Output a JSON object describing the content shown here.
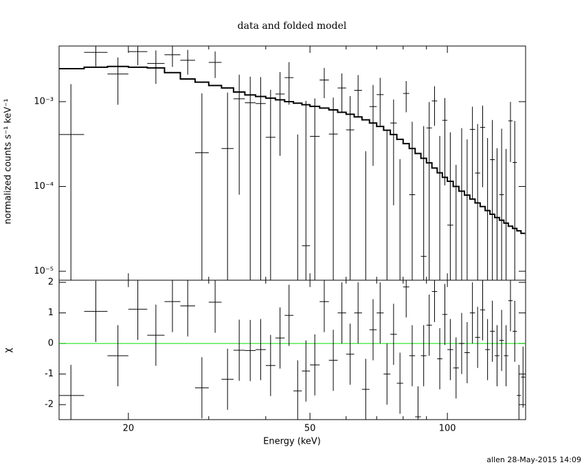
{
  "chart_data": {
    "type": "spectrum",
    "title": "data and folded model",
    "x_label": "Energy (keV)",
    "footer": "allen 28-May-2015 14:09",
    "xlog": true,
    "xlim": [
      14.1,
      148.4
    ],
    "xticks": [
      20,
      50,
      100
    ],
    "xminor": [
      30,
      40,
      60,
      70,
      80,
      90
    ],
    "bins": [
      14,
      16,
      18,
      20,
      22,
      24,
      26,
      28,
      30,
      32,
      34,
      36,
      38,
      40,
      42,
      44,
      46,
      48,
      50,
      52.5,
      55,
      57.5,
      60,
      62.5,
      65,
      67.5,
      70,
      72.5,
      75,
      77.5,
      80,
      82.5,
      85,
      87.5,
      90,
      92.5,
      95,
      97.5,
      100,
      103,
      106,
      109,
      112,
      115,
      118,
      121,
      124,
      127,
      130,
      133,
      136,
      139,
      142,
      145,
      148
    ],
    "panels": [
      {
        "type": "step",
        "y_label": "normalized counts s⁻¹ keV⁻¹",
        "ylog": true,
        "ylim": [
          7.85e-06,
          0.00453
        ],
        "yticks": [
          {
            "value": 1e-05,
            "label": "10⁻⁵"
          },
          {
            "value": 0.0001,
            "label": "10⁻⁴"
          },
          {
            "value": 0.001,
            "label": "10⁻³"
          }
        ],
        "color": "#000000",
        "model_color": "#000000",
        "values": [
          0.00041,
          0.00381,
          0.00212,
          0.00389,
          0.00282,
          0.00357,
          0.00308,
          0.00025,
          0.0029,
          0.00028,
          0.00108,
          0.00097,
          0.00095,
          0.00038,
          0.00123,
          0.00192,
          -0.00059,
          2e-05,
          0.00039,
          0.0018,
          0.000415,
          0.00145,
          0.000465,
          0.00136,
          -0.00044,
          0.000875,
          0.00121,
          -0.00024,
          0.00056,
          -0.00029,
          0.00125,
          8e-05,
          -0.000955,
          1.5e-05,
          0.00049,
          0.00102,
          -0.000105,
          0.000603,
          3.5e-05,
          -0.00022,
          8.8e-05,
          -4.1e-05,
          0.000471,
          0.000144,
          0.000498,
          -2.8e-05,
          0.000207,
          -0.000117,
          8e-05,
          -0.000123,
          0.000594,
          0.000192,
          -0.00065,
          -0.000412
        ],
        "errors": [
          0.0012,
          0.0012,
          0.0012,
          0.0012,
          0.0012,
          0.001,
          0.001,
          0.001,
          0.001,
          0.001,
          0.001,
          0.001,
          0.001,
          0.001,
          0.001,
          0.001,
          0.001,
          0.001,
          0.0007,
          0.0007,
          0.0007,
          0.0007,
          0.0007,
          0.0007,
          0.0007,
          0.0007,
          0.0007,
          0.0007,
          0.0005,
          0.0005,
          0.0005,
          0.0005,
          0.0005,
          0.0005,
          0.0005,
          0.0005,
          0.0005,
          0.0005,
          0.0004,
          0.0004,
          0.0004,
          0.0004,
          0.0004,
          0.0004,
          0.0004,
          0.0004,
          0.0004,
          0.0004,
          0.0004,
          0.0004,
          0.0004,
          0.0004,
          0.0004,
          0.0004
        ],
        "model": [
          0.00245,
          0.00255,
          0.0026,
          0.00255,
          0.0025,
          0.0022,
          0.00185,
          0.0017,
          0.00155,
          0.00145,
          0.0013,
          0.0012,
          0.00115,
          0.0011,
          0.00105,
          0.001,
          0.00096,
          0.00092,
          0.00088,
          0.00084,
          0.0008,
          0.00075,
          0.00071,
          0.00066,
          0.00061,
          0.00056,
          0.00051,
          0.00046,
          0.00041,
          0.00036,
          0.00032,
          0.00028,
          0.000245,
          0.000215,
          0.00019,
          0.000165,
          0.000145,
          0.000128,
          0.000115,
          0.0001,
          8.8e-05,
          7.9e-05,
          7.1e-05,
          6.4e-05,
          5.8e-05,
          5.2e-05,
          4.7e-05,
          4.3e-05,
          4e-05,
          3.7e-05,
          3.4e-05,
          3.2e-05,
          3e-05,
          2.8e-05
        ]
      },
      {
        "type": "residual",
        "y_label": "χ",
        "ylog": false,
        "ylim": [
          -2.49,
          2.07
        ],
        "yticks": [
          -2,
          -1,
          0,
          1,
          2
        ],
        "color": "#000000",
        "reference": {
          "value": 0,
          "color": "#00e000"
        },
        "error": 1,
        "values": [
          -1.7,
          1.05,
          -0.4,
          1.12,
          0.27,
          1.37,
          1.23,
          -1.45,
          1.35,
          -1.17,
          -0.22,
          -0.23,
          -0.2,
          -0.72,
          0.18,
          0.92,
          -1.55,
          -0.9,
          -0.7,
          1.37,
          -0.55,
          1.0,
          -0.35,
          1.0,
          -1.5,
          0.45,
          1.0,
          -1.0,
          0.3,
          -1.3,
          1.85,
          -0.4,
          -2.4,
          -0.4,
          0.6,
          1.7,
          -0.5,
          0.95,
          -0.2,
          -0.8,
          0.0,
          -0.3,
          1.0,
          0.2,
          1.1,
          -0.2,
          0.4,
          -0.4,
          0.1,
          -0.4,
          1.4,
          0.4,
          -1.7,
          -1.1
        ]
      }
    ]
  }
}
